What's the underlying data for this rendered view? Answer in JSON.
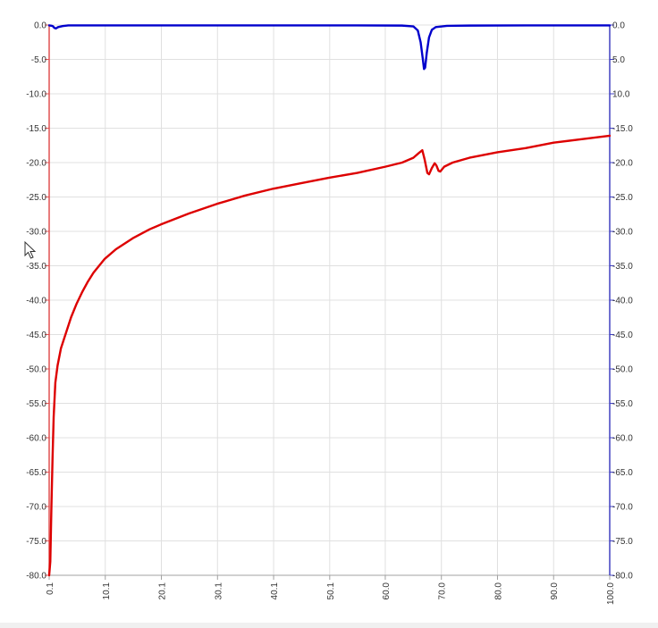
{
  "chart_data": {
    "type": "line",
    "title": "",
    "xlabel": "",
    "ylabel_left": "",
    "ylabel_right": "",
    "xlim": [
      0.1,
      100.0
    ],
    "ylim": [
      -80.0,
      0.0
    ],
    "grid": true,
    "x_ticks": [
      {
        "value": 0.1,
        "label": "0.1"
      },
      {
        "value": 10.1,
        "label": "10.1"
      },
      {
        "value": 20.1,
        "label": "20.1"
      },
      {
        "value": 30.1,
        "label": "30.1"
      },
      {
        "value": 40.1,
        "label": "40.1"
      },
      {
        "value": 50.1,
        "label": "50.1"
      },
      {
        "value": 60.0,
        "label": "60.0"
      },
      {
        "value": 70.0,
        "label": "70.0"
      },
      {
        "value": 80.0,
        "label": "80.0"
      },
      {
        "value": 90.0,
        "label": "90.0"
      },
      {
        "value": 100.0,
        "label": "100.0"
      }
    ],
    "y_ticks": [
      {
        "value": 0,
        "label": "0.0",
        "label_right": "0.0"
      },
      {
        "value": -5,
        "label": "-5.0",
        "label_right": "5.0"
      },
      {
        "value": -10,
        "label": "-10.0",
        "label_right": "10.0"
      },
      {
        "value": -15,
        "label": "-15.0",
        "label_right": "-15.0"
      },
      {
        "value": -20,
        "label": "-20.0",
        "label_right": "-20.0"
      },
      {
        "value": -25,
        "label": "-25.0",
        "label_right": "-25.0"
      },
      {
        "value": -30,
        "label": "-30.0",
        "label_right": "-30.0"
      },
      {
        "value": -35,
        "label": "-35.0",
        "label_right": "-35.0"
      },
      {
        "value": -40,
        "label": "-40.0",
        "label_right": "-40.0"
      },
      {
        "value": -45,
        "label": "-45.0",
        "label_right": "-45.0"
      },
      {
        "value": -50,
        "label": "-50.0",
        "label_right": "-50.0"
      },
      {
        "value": -55,
        "label": "-55.0",
        "label_right": "-55.0"
      },
      {
        "value": -60,
        "label": "-60.0",
        "label_right": "-60.0"
      },
      {
        "value": -65,
        "label": "-65.0",
        "label_right": "-65.0"
      },
      {
        "value": -70,
        "label": "-70.0",
        "label_right": "-70.0"
      },
      {
        "value": -75,
        "label": "-75.0",
        "label_right": "-75.0"
      },
      {
        "value": -80,
        "label": "-80.0",
        "label_right": "-80.0"
      }
    ],
    "colors": {
      "series_red": "#dd0000",
      "series_blue": "#0000cc",
      "left_axis": "#e05050",
      "right_axis": "#4040c0",
      "grid": "#e0e0e0",
      "x_axis": "#a0a0a0"
    },
    "series": [
      {
        "axis": "left",
        "color": "#dd0000",
        "points": [
          [
            0.1,
            -80.0
          ],
          [
            0.3,
            -78.0
          ],
          [
            0.5,
            -70.0
          ],
          [
            0.7,
            -63.0
          ],
          [
            0.9,
            -57.0
          ],
          [
            1.2,
            -52.0
          ],
          [
            1.6,
            -49.5
          ],
          [
            2.2,
            -47.0
          ],
          [
            3,
            -45.0
          ],
          [
            4,
            -42.5
          ],
          [
            5,
            -40.5
          ],
          [
            6,
            -38.8
          ],
          [
            7,
            -37.3
          ],
          [
            8,
            -36.0
          ],
          [
            9,
            -35.0
          ],
          [
            10,
            -34.0
          ],
          [
            12,
            -32.6
          ],
          [
            15,
            -31.0
          ],
          [
            18,
            -29.7
          ],
          [
            20,
            -29.0
          ],
          [
            25,
            -27.4
          ],
          [
            30,
            -26.0
          ],
          [
            35,
            -24.8
          ],
          [
            40,
            -23.8
          ],
          [
            45,
            -23.0
          ],
          [
            50,
            -22.2
          ],
          [
            55,
            -21.5
          ],
          [
            60,
            -20.6
          ],
          [
            63,
            -20.0
          ],
          [
            65,
            -19.3
          ],
          [
            66,
            -18.6
          ],
          [
            66.6,
            -18.2
          ],
          [
            67.0,
            -19.5
          ],
          [
            67.5,
            -21.5
          ],
          [
            67.8,
            -21.7
          ],
          [
            68.3,
            -20.8
          ],
          [
            68.8,
            -20.1
          ],
          [
            69.1,
            -20.4
          ],
          [
            69.5,
            -21.2
          ],
          [
            69.8,
            -21.3
          ],
          [
            70.5,
            -20.6
          ],
          [
            72,
            -20.0
          ],
          [
            75,
            -19.3
          ],
          [
            80,
            -18.5
          ],
          [
            85,
            -17.9
          ],
          [
            90,
            -17.1
          ],
          [
            95,
            -16.6
          ],
          [
            100,
            -16.1
          ]
        ]
      },
      {
        "axis": "right",
        "color": "#0000cc",
        "points": [
          [
            0.1,
            -0.05
          ],
          [
            0.5,
            -0.1
          ],
          [
            0.8,
            -0.2
          ],
          [
            1.0,
            -0.4
          ],
          [
            1.3,
            -0.5
          ],
          [
            1.7,
            -0.3
          ],
          [
            2.5,
            -0.15
          ],
          [
            3.5,
            -0.05
          ],
          [
            10,
            -0.05
          ],
          [
            30,
            -0.05
          ],
          [
            55,
            -0.05
          ],
          [
            63,
            -0.08
          ],
          [
            65,
            -0.2
          ],
          [
            65.8,
            -0.8
          ],
          [
            66.3,
            -2.5
          ],
          [
            66.7,
            -5.0
          ],
          [
            66.9,
            -6.4
          ],
          [
            67.1,
            -6.2
          ],
          [
            67.4,
            -4.0
          ],
          [
            67.8,
            -1.8
          ],
          [
            68.3,
            -0.7
          ],
          [
            69,
            -0.3
          ],
          [
            71,
            -0.12
          ],
          [
            75,
            -0.08
          ],
          [
            85,
            -0.05
          ],
          [
            100,
            -0.05
          ]
        ]
      }
    ]
  },
  "icons": {
    "pointer": "mouse-pointer-icon"
  }
}
